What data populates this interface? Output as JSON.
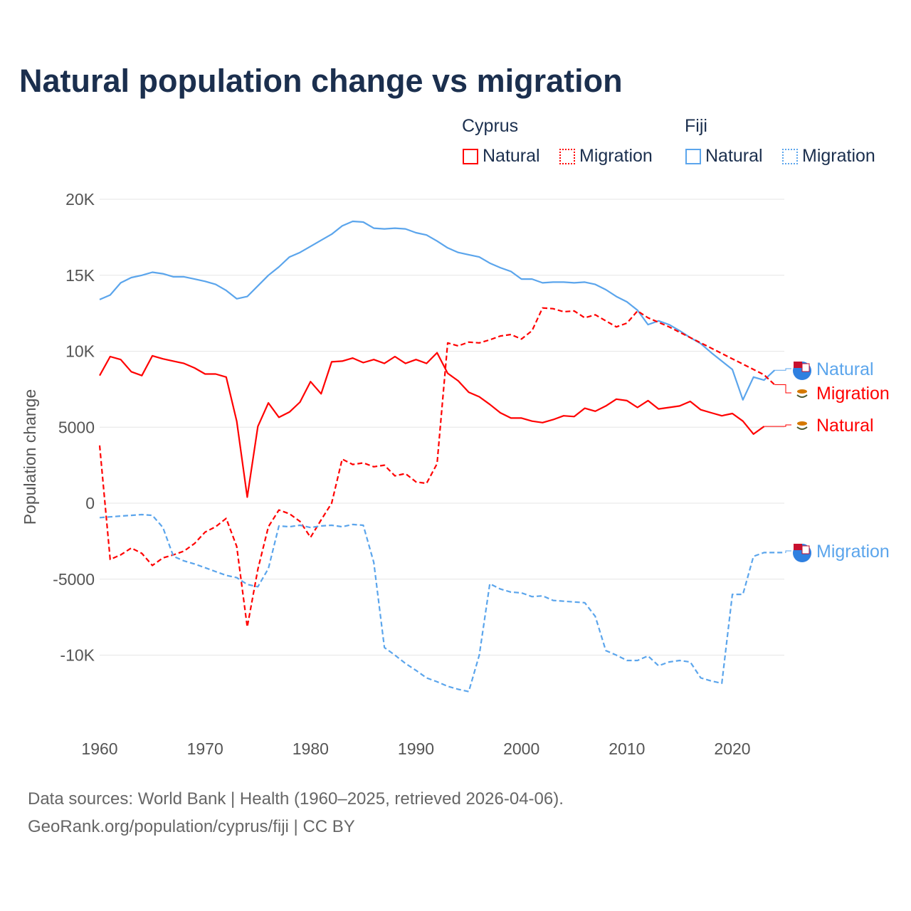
{
  "title": "Natural population change vs migration",
  "legend": {
    "groups": [
      {
        "name": "Cyprus",
        "items": [
          "Natural",
          "Migration"
        ]
      },
      {
        "name": "Fiji",
        "items": [
          "Natural",
          "Migration"
        ]
      }
    ]
  },
  "colors": {
    "cyprus": "#ff0000",
    "fiji": "#5ba5ec"
  },
  "footer": {
    "line1": "Data sources: World Bank | Health (1960–2025, retrieved 2026-04-06).",
    "line2": "GeoRank.org/population/cyprus/fiji | CC BY"
  },
  "chart_data": {
    "type": "line",
    "title": "Natural population change vs migration",
    "xlabel": "",
    "ylabel": "Population change",
    "xlim": [
      1960,
      2025
    ],
    "ylim": [
      -12500,
      20000
    ],
    "x_ticks": [
      "1960",
      "1970",
      "1980",
      "1990",
      "2000",
      "2010",
      "2020"
    ],
    "y_ticks": [
      {
        "value": 20000,
        "label": "20K"
      },
      {
        "value": 15000,
        "label": "15K"
      },
      {
        "value": 10000,
        "label": "10K"
      },
      {
        "value": 5000,
        "label": "5000"
      },
      {
        "value": 0,
        "label": "0"
      },
      {
        "value": -5000,
        "label": "-5000"
      },
      {
        "value": -10000,
        "label": "-10K"
      }
    ],
    "grid": true,
    "x_start": 1960,
    "series": [
      {
        "name": "Fiji Natural",
        "label": "Natural",
        "country": "fiji",
        "style": "solid",
        "values": [
          13400,
          13700,
          14500,
          14850,
          15000,
          15200,
          15100,
          14900,
          14900,
          14750,
          14600,
          14400,
          14000,
          13450,
          13600,
          14300,
          15000,
          15550,
          16200,
          16500,
          16900,
          17300,
          17700,
          18250,
          18550,
          18500,
          18100,
          18050,
          18100,
          18050,
          17800,
          17650,
          17250,
          16800,
          16500,
          16350,
          16200,
          15800,
          15500,
          15250,
          14750,
          14750,
          14500,
          14550,
          14550,
          14500,
          14550,
          14400,
          14050,
          13600,
          13250,
          12700,
          11750,
          12000,
          11750,
          11350,
          10900,
          10500,
          9900,
          9350,
          8800,
          6800,
          8300,
          8100,
          8750
        ]
      },
      {
        "name": "Cyprus Migration",
        "label": "Migration",
        "country": "cyprus",
        "style": "dashed",
        "values": [
          3800,
          -3700,
          -3400,
          -2950,
          -3300,
          -4100,
          -3600,
          -3400,
          -3150,
          -2650,
          -1900,
          -1550,
          -1000,
          -2850,
          -8150,
          -4350,
          -1550,
          -450,
          -700,
          -1200,
          -2250,
          -1100,
          0,
          2900,
          2550,
          2650,
          2400,
          2500,
          1800,
          1950,
          1400,
          1300,
          2600,
          10550,
          10350,
          10600,
          10550,
          10750,
          11000,
          11100,
          10800,
          11350,
          12850,
          12800,
          12600,
          12650,
          12200,
          12400,
          12000,
          11600,
          11850,
          12650,
          12200,
          11900,
          11600,
          11250,
          10900,
          10550,
          10200,
          9850,
          9500,
          9150,
          8800,
          8450,
          7800
        ]
      },
      {
        "name": "Cyprus Natural",
        "label": "Natural",
        "country": "cyprus",
        "style": "solid",
        "values": [
          8400,
          9650,
          9450,
          8650,
          8400,
          9700,
          9500,
          9350,
          9200,
          8900,
          8500,
          8500,
          8300,
          5400,
          400,
          5050,
          6600,
          5650,
          6000,
          6650,
          8000,
          7200,
          9300,
          9350,
          9550,
          9250,
          9450,
          9200,
          9650,
          9200,
          9450,
          9200,
          9900,
          8550,
          8050,
          7300,
          7000,
          6500,
          5950,
          5600,
          5600,
          5400,
          5300,
          5500,
          5750,
          5700,
          6250,
          6050,
          6400,
          6850,
          6750,
          6300,
          6750,
          6200,
          6300,
          6400,
          6700,
          6150,
          5950,
          5750,
          5900,
          5400,
          4550,
          5050
        ]
      },
      {
        "name": "Fiji Migration",
        "label": "Migration",
        "country": "fiji",
        "style": "dashed",
        "values": [
          -950,
          -900,
          -850,
          -800,
          -750,
          -800,
          -1600,
          -3500,
          -3800,
          -4000,
          -4250,
          -4500,
          -4750,
          -4900,
          -5350,
          -5500,
          -4300,
          -1500,
          -1550,
          -1450,
          -1600,
          -1500,
          -1450,
          -1550,
          -1400,
          -1450,
          -3900,
          -9500,
          -10000,
          -10550,
          -11000,
          -11500,
          -11750,
          -12050,
          -12250,
          -12400,
          -10000,
          -5300,
          -5650,
          -5850,
          -5900,
          -6150,
          -6100,
          -6400,
          -6450,
          -6500,
          -6550,
          -7450,
          -9700,
          -10000,
          -10350,
          -10350,
          -10050,
          -10700,
          -10450,
          -10350,
          -10450,
          -11500,
          -11700,
          -11850,
          -6000,
          -6000,
          -3500,
          -3250,
          -3250,
          -3250
        ]
      }
    ]
  }
}
